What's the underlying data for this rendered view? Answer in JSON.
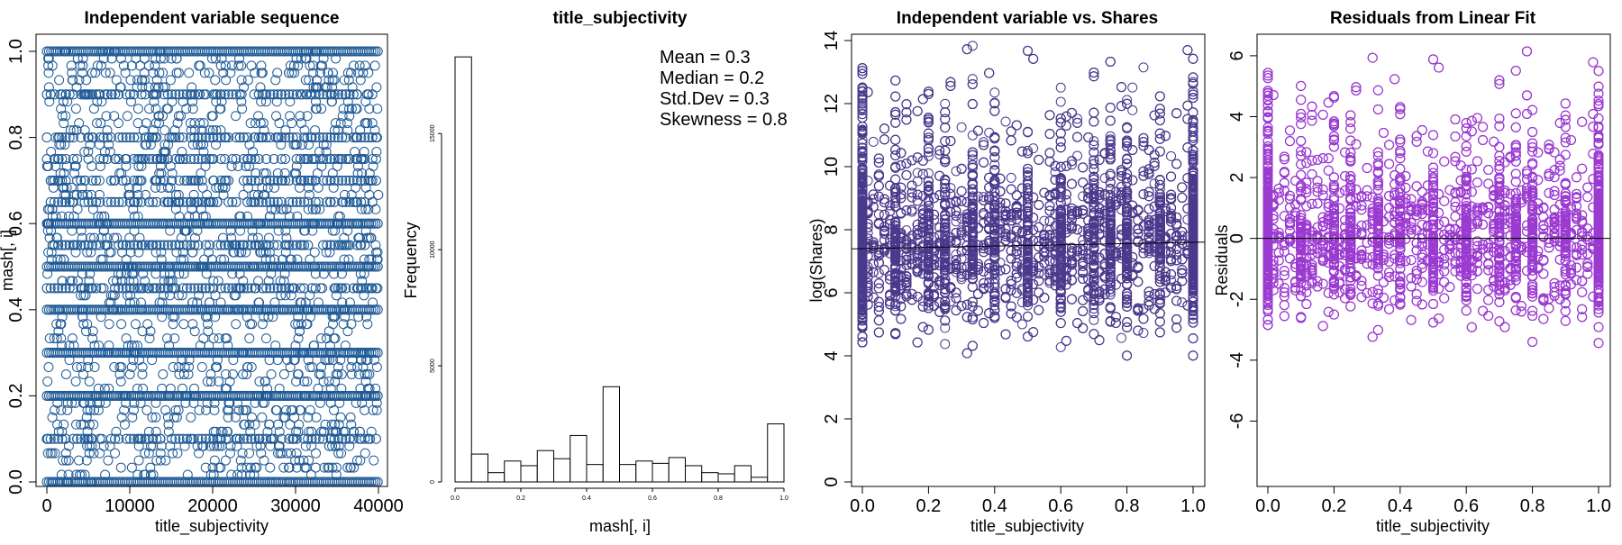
{
  "chart_data": [
    {
      "type": "scatter",
      "title": "Independent variable sequence",
      "xlabel": "title_subjectivity",
      "ylabel": "mash[, i]",
      "xlim": [
        0,
        40000
      ],
      "ylim": [
        0,
        1
      ],
      "x_ticks": [
        "0",
        "10000",
        "20000",
        "30000",
        "40000"
      ],
      "y_ticks": [
        "0.0",
        "0.2",
        "0.4",
        "0.6",
        "0.8",
        "1.0"
      ],
      "point_color": "#1f5a96",
      "dense_levels": [
        0.0,
        0.1,
        0.2,
        0.3,
        0.4,
        0.45,
        0.5,
        0.55,
        0.6,
        0.65,
        0.7,
        0.75,
        0.8,
        0.9,
        1.0
      ]
    },
    {
      "type": "bar",
      "title": "title_subjectivity",
      "xlabel": "mash[, i]",
      "ylabel": "Frequency",
      "xlim": [
        0,
        1
      ],
      "ylim": [
        0,
        18500
      ],
      "x_ticks": [
        "0.0",
        "0.2",
        "0.4",
        "0.6",
        "0.8",
        "1.0"
      ],
      "y_ticks": [
        "0",
        "5000",
        "10000",
        "15000"
      ],
      "bin_width": 0.05,
      "values": [
        18300,
        1200,
        400,
        900,
        700,
        1350,
        1000,
        2000,
        750,
        4100,
        750,
        900,
        800,
        1050,
        700,
        400,
        350,
        700,
        200,
        2500
      ],
      "annotations": [
        "Mean = 0.3",
        "Median = 0.2",
        "Std.Dev = 0.3",
        "Skewness = 0.8"
      ]
    },
    {
      "type": "scatter",
      "title": "Independent variable vs. Shares",
      "xlabel": "title_subjectivity",
      "ylabel": "log(Shares)",
      "xlim": [
        0,
        1
      ],
      "ylim": [
        0,
        14
      ],
      "x_ticks": [
        "0.0",
        "0.2",
        "0.4",
        "0.6",
        "0.8",
        "1.0"
      ],
      "y_ticks": [
        "0",
        "2",
        "4",
        "6",
        "8",
        "10",
        "12",
        "14"
      ],
      "point_color": "#4b3a8c",
      "fit_line": {
        "intercept": 7.4,
        "slope": 0.2
      }
    },
    {
      "type": "scatter",
      "title": "Residuals from Linear Fit",
      "xlabel": "title_subjectivity",
      "ylabel": "Residuals",
      "xlim": [
        0,
        1
      ],
      "ylim": [
        -8,
        6.5
      ],
      "x_ticks": [
        "0.0",
        "0.2",
        "0.4",
        "0.6",
        "0.8",
        "1.0"
      ],
      "y_ticks": [
        "-6",
        "-4",
        "-2",
        "0",
        "2",
        "4",
        "6"
      ],
      "point_color": "#9b3bd0",
      "fit_line": {
        "intercept": 0,
        "slope": 0
      }
    }
  ]
}
